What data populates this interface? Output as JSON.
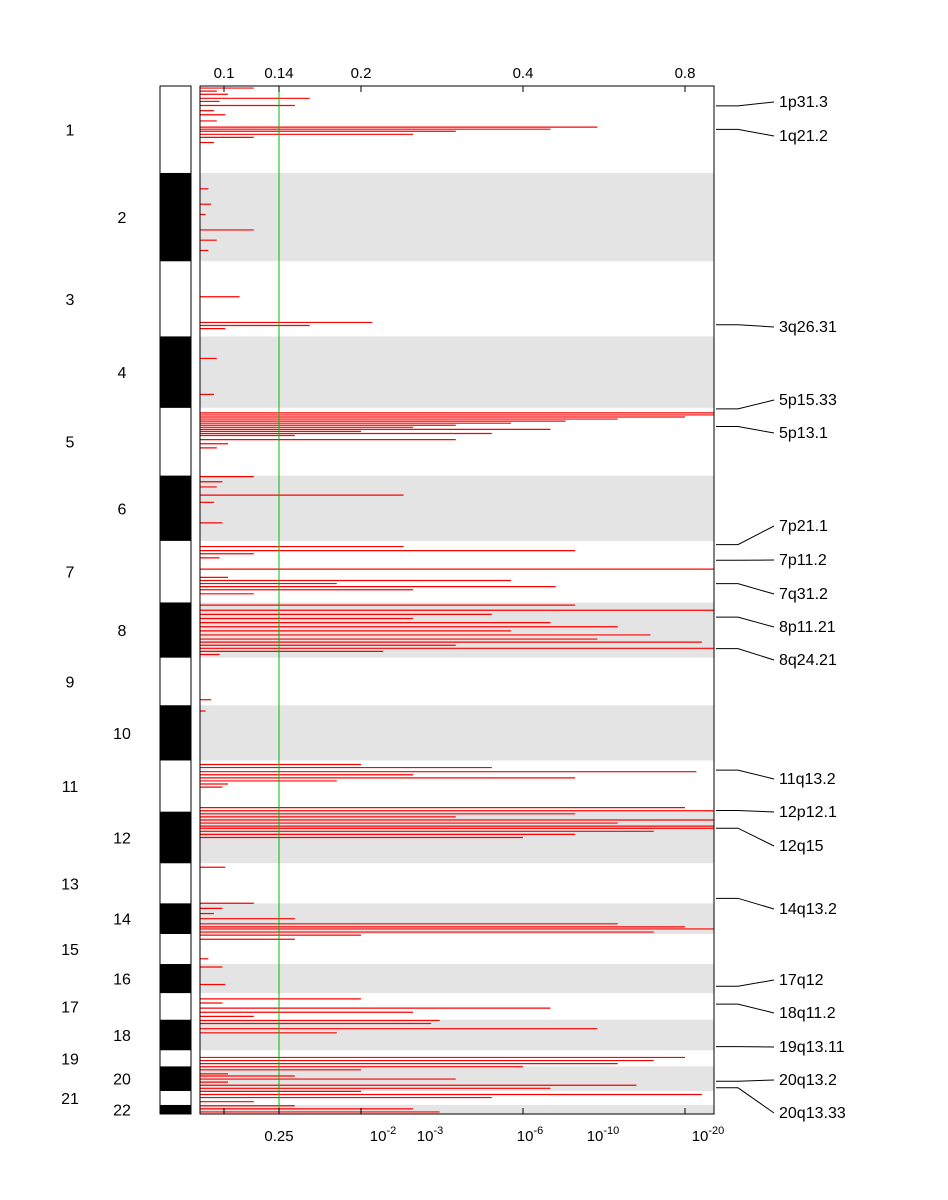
{
  "chart_data": {
    "type": "bar",
    "orientation": "horizontal",
    "top_axis": {
      "label": "",
      "ticks": [
        {
          "value": 0.1,
          "label": "0.1"
        },
        {
          "value": 0.14,
          "label": "0.14"
        },
        {
          "value": 0.2,
          "label": "0.2"
        },
        {
          "value": 0.4,
          "label": "0.4"
        },
        {
          "value": 0.8,
          "label": "0.8"
        }
      ]
    },
    "bottom_axis": {
      "label": "",
      "ticks": [
        {
          "base": "0.25",
          "exp": ""
        },
        {
          "base": "10",
          "exp": "-2"
        },
        {
          "base": "10",
          "exp": "-3"
        },
        {
          "base": "10",
          "exp": "-6"
        },
        {
          "base": "10",
          "exp": "-10"
        },
        {
          "base": "10",
          "exp": "-20"
        }
      ]
    },
    "threshold": {
      "top_value": 0.14,
      "bottom_value": "0.25",
      "color": "#00bb00"
    },
    "bar_color": "#ff0000",
    "band_color": "#e4e4e4",
    "chromosomes": [
      {
        "name": "1",
        "start": 0.0,
        "end": 0.0846
      },
      {
        "name": "2",
        "start": 0.0846,
        "end": 0.1705
      },
      {
        "name": "3",
        "start": 0.1705,
        "end": 0.2436
      },
      {
        "name": "4",
        "start": 0.2436,
        "end": 0.3131
      },
      {
        "name": "5",
        "start": 0.3131,
        "end": 0.379
      },
      {
        "name": "6",
        "start": 0.379,
        "end": 0.4425
      },
      {
        "name": "7",
        "start": 0.4425,
        "end": 0.5024
      },
      {
        "name": "8",
        "start": 0.5024,
        "end": 0.5561
      },
      {
        "name": "9",
        "start": 0.5561,
        "end": 0.6024
      },
      {
        "name": "10",
        "start": 0.6024,
        "end": 0.6561
      },
      {
        "name": "11",
        "start": 0.6561,
        "end": 0.7059
      },
      {
        "name": "12",
        "start": 0.7059,
        "end": 0.7561
      },
      {
        "name": "13",
        "start": 0.7561,
        "end": 0.7951
      },
      {
        "name": "14",
        "start": 0.7951,
        "end": 0.8249
      },
      {
        "name": "15",
        "start": 0.8249,
        "end": 0.8541
      },
      {
        "name": "16",
        "start": 0.8541,
        "end": 0.8824
      },
      {
        "name": "17",
        "start": 0.8824,
        "end": 0.9083
      },
      {
        "name": "18",
        "start": 0.9083,
        "end": 0.938
      },
      {
        "name": "19",
        "start": 0.938,
        "end": 0.9537
      },
      {
        "name": "20",
        "start": 0.9537,
        "end": 0.9776
      },
      {
        "name": "21",
        "start": 0.9776,
        "end": 0.9912
      },
      {
        "name": "22",
        "start": 0.9912,
        "end": 1.0
      }
    ],
    "peaks": [
      {
        "label": "1p31.3",
        "pos": 0.0193
      },
      {
        "label": "1q21.2",
        "pos": 0.0422
      },
      {
        "label": "3q26.31",
        "pos": 0.2322
      },
      {
        "label": "5p15.33",
        "pos": 0.3141
      },
      {
        "label": "5p13.1",
        "pos": 0.3312
      },
      {
        "label": "7p21.1",
        "pos": 0.4461
      },
      {
        "label": "7p11.2",
        "pos": 0.4613
      },
      {
        "label": "7q31.2",
        "pos": 0.4841
      },
      {
        "label": "8p11.21",
        "pos": 0.5167
      },
      {
        "label": "8q24.21",
        "pos": 0.5473
      },
      {
        "label": "11q13.2",
        "pos": 0.6655
      },
      {
        "label": "12p12.1",
        "pos": 0.7048
      },
      {
        "label": "12q15",
        "pos": 0.722
      },
      {
        "label": "14q13.2",
        "pos": 0.7902
      },
      {
        "label": "17q12",
        "pos": 0.8757
      },
      {
        "label": "18q11.2",
        "pos": 0.8931
      },
      {
        "label": "19q13.11",
        "pos": 0.9345
      },
      {
        "label": "20q13.2",
        "pos": 0.9682
      },
      {
        "label": "20q13.33",
        "pos": 0.9745
      }
    ],
    "bars": [
      [
        0.002,
        0.12
      ],
      [
        0.005,
        0.06
      ],
      [
        0.008,
        0.1
      ],
      [
        0.012,
        0.16
      ],
      [
        0.015,
        0.07
      ],
      [
        0.019,
        0.15
      ],
      [
        0.024,
        0.05
      ],
      [
        0.028,
        0.09
      ],
      [
        0.034,
        0.06
      ],
      [
        0.04,
        0.55
      ],
      [
        0.042,
        0.45
      ],
      [
        0.044,
        0.3
      ],
      [
        0.047,
        0.25
      ],
      [
        0.05,
        0.12
      ],
      [
        0.055,
        0.05
      ],
      [
        0.1,
        0.03
      ],
      [
        0.115,
        0.04
      ],
      [
        0.125,
        0.02
      ],
      [
        0.14,
        0.12
      ],
      [
        0.15,
        0.06
      ],
      [
        0.16,
        0.03
      ],
      [
        0.205,
        0.11
      ],
      [
        0.23,
        0.21
      ],
      [
        0.233,
        0.16
      ],
      [
        0.236,
        0.09
      ],
      [
        0.265,
        0.06
      ],
      [
        0.3,
        0.05
      ],
      [
        0.318,
        1.3
      ],
      [
        0.32,
        0.98
      ],
      [
        0.322,
        0.8
      ],
      [
        0.324,
        0.6
      ],
      [
        0.326,
        0.48
      ],
      [
        0.328,
        0.38
      ],
      [
        0.33,
        0.3
      ],
      [
        0.332,
        0.25
      ],
      [
        0.334,
        0.45
      ],
      [
        0.336,
        0.2
      ],
      [
        0.338,
        0.35
      ],
      [
        0.34,
        0.15
      ],
      [
        0.344,
        0.3
      ],
      [
        0.348,
        0.1
      ],
      [
        0.352,
        0.06
      ],
      [
        0.38,
        0.12
      ],
      [
        0.385,
        0.08
      ],
      [
        0.39,
        0.06
      ],
      [
        0.398,
        0.24
      ],
      [
        0.405,
        0.05
      ],
      [
        0.425,
        0.08
      ],
      [
        0.448,
        0.24
      ],
      [
        0.452,
        0.5
      ],
      [
        0.455,
        0.12
      ],
      [
        0.459,
        0.07
      ],
      [
        0.47,
        1.12
      ],
      [
        0.478,
        0.1
      ],
      [
        0.481,
        0.38
      ],
      [
        0.484,
        0.18
      ],
      [
        0.487,
        0.46
      ],
      [
        0.49,
        0.25
      ],
      [
        0.494,
        0.12
      ],
      [
        0.505,
        0.5
      ],
      [
        0.51,
        0.98
      ],
      [
        0.514,
        0.35
      ],
      [
        0.518,
        0.25
      ],
      [
        0.522,
        0.45
      ],
      [
        0.526,
        0.6
      ],
      [
        0.53,
        0.38
      ],
      [
        0.534,
        0.69
      ],
      [
        0.538,
        0.55
      ],
      [
        0.541,
        0.86
      ],
      [
        0.544,
        0.3
      ],
      [
        0.547,
        1.4
      ],
      [
        0.55,
        0.22
      ],
      [
        0.553,
        0.07
      ],
      [
        0.597,
        0.04
      ],
      [
        0.608,
        0.02
      ],
      [
        0.66,
        0.2
      ],
      [
        0.663,
        0.35
      ],
      [
        0.667,
        0.84
      ],
      [
        0.67,
        0.25
      ],
      [
        0.673,
        0.5
      ],
      [
        0.676,
        0.18
      ],
      [
        0.679,
        0.1
      ],
      [
        0.682,
        0.08
      ],
      [
        0.702,
        0.8
      ],
      [
        0.705,
        1.1
      ],
      [
        0.708,
        0.5
      ],
      [
        0.711,
        0.3
      ],
      [
        0.714,
        1.25
      ],
      [
        0.717,
        0.6
      ],
      [
        0.72,
        1.9
      ],
      [
        0.722,
        1.0
      ],
      [
        0.725,
        0.7
      ],
      [
        0.728,
        0.5
      ],
      [
        0.731,
        0.4
      ],
      [
        0.76,
        0.09
      ],
      [
        0.795,
        0.12
      ],
      [
        0.8,
        0.08
      ],
      [
        0.805,
        0.05
      ],
      [
        0.81,
        0.15
      ],
      [
        0.815,
        0.6
      ],
      [
        0.818,
        0.8
      ],
      [
        0.82,
        1.8
      ],
      [
        0.823,
        0.7
      ],
      [
        0.826,
        0.2
      ],
      [
        0.83,
        0.15
      ],
      [
        0.849,
        0.03
      ],
      [
        0.857,
        0.08
      ],
      [
        0.874,
        0.09
      ],
      [
        0.888,
        0.2
      ],
      [
        0.892,
        0.08
      ],
      [
        0.897,
        0.45
      ],
      [
        0.901,
        0.25
      ],
      [
        0.905,
        0.12
      ],
      [
        0.909,
        0.28
      ],
      [
        0.912,
        0.27
      ],
      [
        0.917,
        0.55
      ],
      [
        0.921,
        0.18
      ],
      [
        0.945,
        0.8
      ],
      [
        0.948,
        0.7
      ],
      [
        0.951,
        0.6
      ],
      [
        0.954,
        0.4
      ],
      [
        0.957,
        0.2
      ],
      [
        0.961,
        0.1
      ],
      [
        0.963,
        0.15
      ],
      [
        0.966,
        0.3
      ],
      [
        0.969,
        0.1
      ],
      [
        0.972,
        0.65
      ],
      [
        0.975,
        0.45
      ],
      [
        0.978,
        0.2
      ],
      [
        0.981,
        0.86
      ],
      [
        0.984,
        0.35
      ],
      [
        0.988,
        0.12
      ],
      [
        0.992,
        0.15
      ],
      [
        0.995,
        0.25
      ],
      [
        0.998,
        0.28
      ]
    ]
  }
}
